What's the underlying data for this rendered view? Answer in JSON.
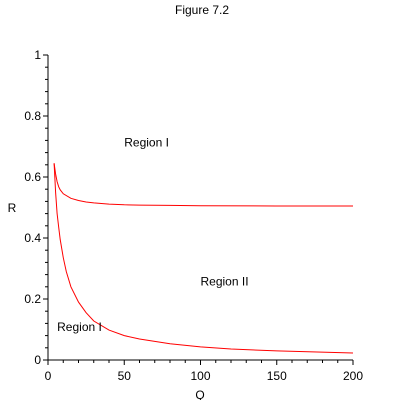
{
  "chart_data": {
    "type": "line",
    "title": "Figure 7.2",
    "xlabel": "Q",
    "ylabel": "R",
    "xlim": [
      0,
      200
    ],
    "ylim": [
      0,
      1
    ],
    "x_ticks": [
      0,
      50,
      100,
      150,
      200
    ],
    "x_tick_labels": [
      "0",
      "50",
      "100",
      "150",
      "200"
    ],
    "y_ticks": [
      0,
      0.2,
      0.4,
      0.6,
      0.8,
      1
    ],
    "y_tick_labels": [
      "0",
      "0.2",
      "0.4",
      "0.6",
      "0.8",
      "1"
    ],
    "grid": false,
    "legend": "none",
    "line_color": "#ff0000",
    "series": [
      {
        "points": [
          [
            4,
            0.645
          ],
          [
            5,
            0.61
          ],
          [
            6,
            0.585
          ],
          [
            7,
            0.568
          ],
          [
            8,
            0.558
          ],
          [
            10,
            0.545
          ],
          [
            15,
            0.53
          ],
          [
            20,
            0.523
          ],
          [
            25,
            0.518
          ],
          [
            30,
            0.515
          ],
          [
            40,
            0.511
          ],
          [
            50,
            0.509
          ],
          [
            60,
            0.508
          ],
          [
            80,
            0.507
          ],
          [
            100,
            0.506
          ],
          [
            150,
            0.505
          ],
          [
            200,
            0.505
          ]
        ]
      },
      {
        "points": [
          [
            4,
            0.645
          ],
          [
            5,
            0.55
          ],
          [
            6,
            0.48
          ],
          [
            7,
            0.435
          ],
          [
            8,
            0.395
          ],
          [
            10,
            0.335
          ],
          [
            12,
            0.29
          ],
          [
            15,
            0.24
          ],
          [
            20,
            0.19
          ],
          [
            25,
            0.155
          ],
          [
            30,
            0.128
          ],
          [
            40,
            0.098
          ],
          [
            50,
            0.08
          ],
          [
            60,
            0.069
          ],
          [
            80,
            0.053
          ],
          [
            100,
            0.043
          ],
          [
            120,
            0.036
          ],
          [
            150,
            0.03
          ],
          [
            200,
            0.023
          ]
        ]
      }
    ],
    "annotations": [
      {
        "text": "Region I",
        "x": 50,
        "y": 0.7
      },
      {
        "text": "Region II",
        "x": 100,
        "y": 0.245
      },
      {
        "text": "Region I",
        "x": 6,
        "y": 0.095
      }
    ]
  }
}
